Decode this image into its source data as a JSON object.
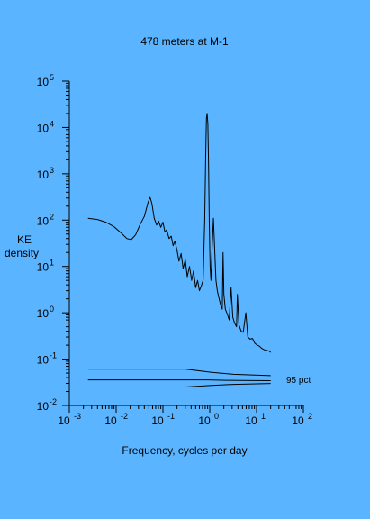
{
  "chart_data": {
    "type": "line",
    "title": "478 meters at M-1",
    "xlabel": "Frequency, cycles per day",
    "ylabel_lines": [
      "KE",
      "density"
    ],
    "x_scale": "log",
    "y_scale": "log",
    "xlim": [
      0.001,
      100
    ],
    "ylim": [
      0.01,
      100000
    ],
    "x_ticks": [
      {
        "base": "10",
        "exp": "-3"
      },
      {
        "base": "10",
        "exp": "-2"
      },
      {
        "base": "10",
        "exp": "-1"
      },
      {
        "base": "10",
        "exp": "0"
      },
      {
        "base": "10",
        "exp": "1"
      },
      {
        "base": "10",
        "exp": "2"
      }
    ],
    "y_ticks": [
      {
        "base": "10",
        "exp": "5"
      },
      {
        "base": "10",
        "exp": "4"
      },
      {
        "base": "10",
        "exp": "3"
      },
      {
        "base": "10",
        "exp": "2"
      },
      {
        "base": "10",
        "exp": "1"
      },
      {
        "base": "10",
        "exp": "0"
      },
      {
        "base": "10",
        "exp": "-1"
      },
      {
        "base": "10",
        "exp": "-2"
      }
    ],
    "series": [
      {
        "points": [
          [
            0.0025,
            110
          ],
          [
            0.004,
            103
          ],
          [
            0.006,
            90
          ],
          [
            0.009,
            72
          ],
          [
            0.013,
            52
          ],
          [
            0.017,
            40
          ],
          [
            0.021,
            38
          ],
          [
            0.026,
            48
          ],
          [
            0.032,
            78
          ],
          [
            0.04,
            120
          ],
          [
            0.048,
            240
          ],
          [
            0.053,
            310
          ],
          [
            0.058,
            230
          ],
          [
            0.065,
            110
          ],
          [
            0.073,
            78
          ],
          [
            0.081,
            95
          ],
          [
            0.09,
            70
          ],
          [
            0.1,
            90
          ],
          [
            0.11,
            55
          ],
          [
            0.12,
            62
          ],
          [
            0.135,
            40
          ],
          [
            0.15,
            45
          ],
          [
            0.165,
            28
          ],
          [
            0.18,
            35
          ],
          [
            0.2,
            22
          ],
          [
            0.22,
            13
          ],
          [
            0.245,
            19
          ],
          [
            0.27,
            9
          ],
          [
            0.3,
            14
          ],
          [
            0.33,
            6
          ],
          [
            0.37,
            10
          ],
          [
            0.41,
            5
          ],
          [
            0.45,
            8
          ],
          [
            0.5,
            3.5
          ],
          [
            0.55,
            5
          ],
          [
            0.6,
            3
          ],
          [
            0.66,
            3.8
          ],
          [
            0.72,
            5
          ],
          [
            0.78,
            100
          ],
          [
            0.82,
            2500
          ],
          [
            0.85,
            16000
          ],
          [
            0.88,
            20000
          ],
          [
            0.91,
            12000
          ],
          [
            0.94,
            2000
          ],
          [
            0.98,
            80
          ],
          [
            1.02,
            10
          ],
          [
            1.06,
            5
          ],
          [
            1.12,
            25
          ],
          [
            1.2,
            110
          ],
          [
            1.28,
            20
          ],
          [
            1.36,
            5
          ],
          [
            1.45,
            3
          ],
          [
            1.55,
            2.2
          ],
          [
            1.7,
            1.5
          ],
          [
            1.85,
            1.2
          ],
          [
            1.93,
            20
          ],
          [
            2.0,
            2.5
          ],
          [
            2.15,
            1.2
          ],
          [
            2.4,
            0.9
          ],
          [
            2.6,
            0.7
          ],
          [
            2.85,
            3.5
          ],
          [
            3.1,
            0.8
          ],
          [
            3.4,
            0.6
          ],
          [
            3.75,
            0.5
          ],
          [
            3.9,
            2.5
          ],
          [
            4.2,
            0.55
          ],
          [
            4.7,
            0.4
          ],
          [
            5.2,
            0.38
          ],
          [
            5.9,
            1.0
          ],
          [
            6.5,
            0.3
          ],
          [
            7.3,
            0.27
          ],
          [
            8.2,
            0.28
          ],
          [
            9.2,
            0.22
          ],
          [
            10.3,
            0.2
          ],
          [
            11.5,
            0.19
          ],
          [
            13,
            0.17
          ],
          [
            14.5,
            0.16
          ],
          [
            16.5,
            0.155
          ],
          [
            18.5,
            0.15
          ],
          [
            20,
            0.14
          ]
        ]
      }
    ],
    "confidence": {
      "label": "95 pct",
      "center": [
        [
          0.0025,
          0.0356
        ],
        [
          0.9,
          0.0356
        ],
        [
          2.2,
          0.0348
        ],
        [
          20,
          0.0342
        ]
      ],
      "upper": [
        [
          0.0025,
          0.061
        ],
        [
          0.3,
          0.061
        ],
        [
          1.1,
          0.052
        ],
        [
          3.2,
          0.047
        ],
        [
          20,
          0.044
        ]
      ],
      "lower": [
        [
          0.0025,
          0.025
        ],
        [
          0.3,
          0.025
        ],
        [
          1.1,
          0.0272
        ],
        [
          3.2,
          0.0285
        ],
        [
          20,
          0.0298
        ]
      ]
    }
  }
}
